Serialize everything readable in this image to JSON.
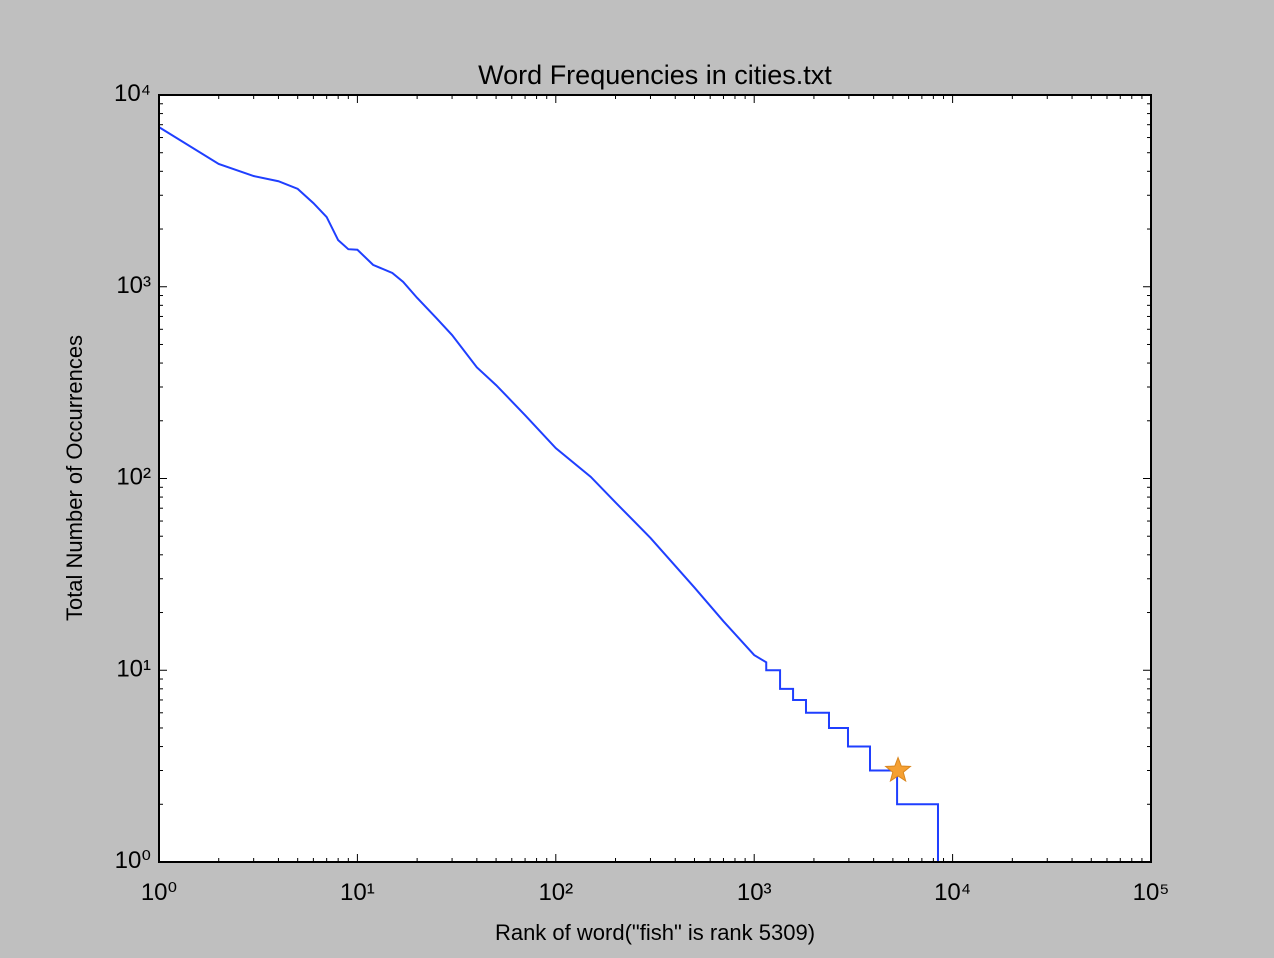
{
  "chart_data": {
    "type": "line",
    "title": "Word Frequencies in cities.txt",
    "x_label": "Rank of word(\"fish\" is rank 5309)",
    "y_label": "Total Number of Occurrences",
    "xscale": "log",
    "yscale": "log",
    "xlim": [
      1,
      100000
    ],
    "ylim": [
      1,
      10000
    ],
    "xticks": [
      {
        "value": 1,
        "label": "10⁰"
      },
      {
        "value": 10,
        "label": "10¹"
      },
      {
        "value": 100,
        "label": "10²"
      },
      {
        "value": 1000,
        "label": "10³"
      },
      {
        "value": 10000,
        "label": "10⁴"
      },
      {
        "value": 100000,
        "label": "10⁵"
      }
    ],
    "yticks": [
      {
        "value": 1,
        "label": "10⁰"
      },
      {
        "value": 10,
        "label": "10¹"
      },
      {
        "value": 100,
        "label": "10²"
      },
      {
        "value": 1000,
        "label": "10³"
      },
      {
        "value": 10000,
        "label": "10⁴"
      }
    ],
    "minor_ticks": true,
    "x": [
      1,
      2,
      3,
      4,
      5,
      6,
      7,
      8,
      9,
      10,
      12,
      15,
      17,
      20,
      25,
      30,
      40,
      50,
      70,
      100,
      150,
      200,
      300,
      500,
      700,
      1000,
      1150,
      1150,
      1350,
      1350,
      1570,
      1570,
      1824,
      1824,
      2382,
      2382,
      2970,
      2970,
      3834,
      3834,
      5250,
      5250,
      8440,
      8440,
      21400
    ],
    "series": [
      {
        "color": "#1f3fff",
        "values": [
          6800,
          4370,
          3780,
          3550,
          3240,
          2730,
          2310,
          1750,
          1570,
          1560,
          1300,
          1180,
          1060,
          875,
          687,
          560,
          380,
          307,
          214,
          144,
          102,
          75,
          49,
          27,
          18,
          12,
          11,
          10,
          10,
          8,
          8,
          7,
          7,
          6,
          6,
          5,
          5,
          4,
          4,
          3,
          3,
          2,
          2,
          1,
          1
        ]
      }
    ],
    "marker": {
      "x": 5309,
      "y": 3,
      "color": "#f5a032",
      "shape": "star"
    }
  }
}
